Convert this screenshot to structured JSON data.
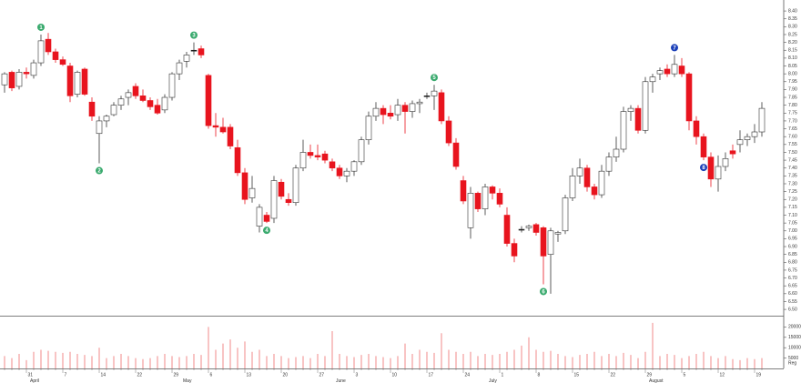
{
  "chart_data": {
    "type": "candlestick",
    "categories": [
      null,
      null,
      null,
      "31",
      null,
      null,
      null,
      null,
      "7",
      null,
      null,
      null,
      null,
      "14",
      null,
      null,
      null,
      null,
      "22",
      null,
      null,
      null,
      null,
      "29",
      null,
      null,
      null,
      null,
      "6",
      null,
      null,
      null,
      null,
      "13",
      null,
      null,
      null,
      null,
      "20",
      null,
      null,
      null,
      null,
      "27",
      null,
      null,
      null,
      null,
      "3",
      null,
      null,
      null,
      null,
      "10",
      null,
      null,
      null,
      null,
      "17",
      null,
      null,
      null,
      null,
      "24",
      null,
      null,
      null,
      null,
      "1",
      null,
      null,
      null,
      null,
      "8",
      null,
      null,
      null,
      null,
      "15",
      null,
      null,
      null,
      null,
      "22",
      null,
      null,
      null,
      null,
      "29",
      null,
      null,
      null,
      null,
      "5",
      null,
      null,
      null,
      null,
      "12",
      null,
      null,
      null,
      null,
      "19",
      null
    ],
    "months": [
      null,
      null,
      null,
      null,
      "April",
      null,
      null,
      null,
      null,
      null,
      null,
      null,
      null,
      null,
      null,
      null,
      null,
      null,
      null,
      null,
      null,
      null,
      null,
      null,
      null,
      "May",
      null,
      null,
      null,
      null,
      null,
      null,
      null,
      null,
      null,
      null,
      null,
      null,
      null,
      null,
      null,
      null,
      null,
      null,
      null,
      null,
      "June",
      null,
      null,
      null,
      null,
      null,
      null,
      null,
      null,
      null,
      null,
      null,
      null,
      null,
      null,
      null,
      null,
      null,
      null,
      null,
      null,
      "July",
      null,
      null,
      null,
      null,
      null,
      null,
      null,
      null,
      null,
      null,
      null,
      null,
      null,
      null,
      null,
      null,
      null,
      null,
      null,
      null,
      null,
      "August",
      null,
      null,
      null,
      null,
      null,
      null,
      null,
      null,
      null,
      null,
      null,
      null,
      null,
      null
    ],
    "open": [
      7.93,
      8.01,
      7.92,
      8.01,
      7.99,
      8.07,
      8.22,
      8.14,
      8.09,
      8.05,
      7.87,
      8.03,
      7.82,
      7.62,
      7.7,
      7.74,
      7.8,
      7.85,
      7.92,
      7.86,
      7.83,
      7.8,
      7.77,
      7.85,
      8.0,
      8.08,
      8.15,
      8.16,
      7.99,
      7.67,
      7.66,
      7.66,
      7.53,
      7.37,
      7.21,
      7.03,
      7.1,
      7.08,
      7.31,
      7.2,
      7.18,
      7.4,
      7.5,
      7.48,
      7.49,
      7.44,
      7.4,
      7.35,
      7.38,
      7.44,
      7.58,
      7.73,
      7.78,
      7.75,
      7.74,
      7.8,
      7.76,
      7.81,
      7.86,
      7.86,
      7.88,
      7.7,
      7.56,
      7.32,
      7.02,
      7.24,
      7.14,
      7.28,
      7.24,
      7.1,
      6.92,
      7.01,
      7.02,
      7.04,
      7.02,
      6.85,
      6.98,
      7.0,
      7.21,
      7.35,
      7.4,
      7.28,
      7.23,
      7.38,
      7.47,
      7.52,
      7.76,
      7.78,
      7.64,
      7.95,
      8.0,
      8.03,
      8.0,
      8.05,
      8.0,
      7.7,
      7.6,
      7.47,
      7.33,
      7.41,
      7.51,
      7.55,
      7.58,
      7.6,
      7.63
    ],
    "high": [
      8.01,
      8.02,
      8.03,
      8.04,
      8.09,
      8.25,
      8.26,
      8.16,
      8.11,
      8.07,
      8.02,
      8.04,
      7.85,
      7.73,
      7.74,
      7.82,
      7.86,
      7.9,
      7.94,
      7.9,
      7.85,
      7.84,
      7.87,
      8.01,
      8.09,
      8.14,
      8.2,
      8.18,
      8.0,
      7.75,
      7.72,
      7.68,
      7.58,
      7.4,
      7.35,
      7.17,
      7.12,
      7.35,
      7.33,
      7.24,
      7.42,
      7.58,
      7.55,
      7.55,
      7.51,
      7.46,
      7.42,
      7.4,
      7.45,
      7.6,
      7.76,
      7.82,
      7.8,
      7.8,
      7.84,
      7.82,
      7.83,
      7.84,
      7.88,
      7.93,
      7.9,
      7.73,
      7.59,
      7.35,
      7.28,
      7.25,
      7.3,
      7.29,
      7.27,
      7.15,
      6.95,
      7.03,
      7.04,
      7.05,
      7.03,
      7.02,
      7.0,
      7.23,
      7.4,
      7.46,
      7.42,
      7.3,
      7.42,
      7.5,
      7.6,
      7.79,
      7.8,
      7.8,
      7.98,
      8.0,
      8.04,
      8.06,
      8.12,
      8.1,
      8.01,
      7.73,
      7.62,
      7.5,
      7.48,
      7.5,
      7.55,
      7.64,
      7.62,
      7.68,
      7.82
    ],
    "low": [
      7.88,
      7.89,
      7.9,
      7.97,
      7.97,
      8.05,
      8.12,
      8.07,
      8.05,
      7.82,
      7.85,
      7.86,
      7.7,
      7.43,
      7.66,
      7.73,
      7.77,
      7.8,
      7.84,
      7.82,
      7.77,
      7.74,
      7.75,
      7.83,
      7.96,
      8.04,
      8.12,
      8.1,
      7.65,
      7.6,
      7.62,
      7.52,
      7.35,
      7.17,
      7.18,
      6.99,
      7.05,
      7.05,
      7.2,
      7.16,
      7.16,
      7.38,
      7.46,
      7.45,
      7.43,
      7.38,
      7.33,
      7.31,
      7.35,
      7.42,
      7.55,
      7.7,
      7.68,
      7.71,
      7.7,
      7.62,
      7.72,
      7.75,
      7.84,
      7.77,
      7.68,
      7.54,
      7.39,
      7.17,
      6.95,
      7.12,
      7.1,
      7.2,
      7.15,
      6.9,
      6.8,
      6.99,
      7.0,
      6.97,
      6.66,
      6.6,
      6.93,
      6.98,
      7.19,
      7.3,
      7.25,
      7.2,
      7.21,
      7.35,
      7.44,
      7.5,
      7.7,
      7.62,
      7.62,
      7.88,
      7.96,
      7.98,
      7.98,
      7.98,
      7.64,
      7.55,
      7.45,
      7.28,
      7.25,
      7.38,
      7.46,
      7.5,
      7.54,
      7.56,
      7.6
    ],
    "close": [
      8.0,
      7.91,
      8.01,
      8.0,
      8.07,
      8.21,
      8.14,
      8.09,
      8.06,
      7.86,
      8.01,
      7.87,
      7.73,
      7.7,
      7.73,
      7.8,
      7.84,
      7.88,
      7.86,
      7.83,
      7.79,
      7.75,
      7.85,
      8.0,
      8.07,
      8.12,
      8.15,
      8.12,
      7.67,
      7.66,
      7.63,
      7.54,
      7.37,
      7.2,
      7.27,
      7.15,
      7.06,
      7.32,
      7.22,
      7.18,
      7.4,
      7.5,
      7.48,
      7.47,
      7.45,
      7.4,
      7.35,
      7.38,
      7.44,
      7.58,
      7.73,
      7.78,
      7.74,
      7.73,
      7.8,
      7.76,
      7.81,
      7.82,
      7.86,
      7.89,
      7.7,
      7.56,
      7.41,
      7.19,
      7.24,
      7.14,
      7.28,
      7.24,
      7.17,
      6.92,
      6.84,
      7.01,
      7.03,
      6.99,
      6.84,
      7.0,
      6.99,
      7.21,
      7.35,
      7.4,
      7.28,
      7.23,
      7.38,
      7.47,
      7.52,
      7.76,
      7.78,
      7.64,
      7.95,
      7.98,
      8.02,
      8.0,
      8.06,
      8.0,
      7.7,
      7.6,
      7.47,
      7.33,
      7.41,
      7.46,
      7.49,
      7.58,
      7.6,
      7.63,
      7.78
    ],
    "volume": [
      6000,
      5000,
      7000,
      4000,
      8000,
      9000,
      8500,
      8000,
      7500,
      8000,
      7000,
      6500,
      6000,
      10000,
      5000,
      6000,
      7000,
      6000,
      5000,
      4500,
      5000,
      6000,
      7000,
      6000,
      5500,
      6000,
      7000,
      6500,
      20000,
      9000,
      12000,
      14000,
      10000,
      13000,
      8000,
      9000,
      6000,
      7000,
      6000,
      5000,
      5500,
      6000,
      5000,
      7000,
      6000,
      18000,
      7000,
      6000,
      5500,
      6500,
      7000,
      6000,
      5500,
      5000,
      6000,
      12000,
      7000,
      9000,
      8000,
      7500,
      17000,
      9000,
      8000,
      7000,
      8000,
      6000,
      7000,
      6500,
      7000,
      8000,
      9000,
      11000,
      15000,
      9000,
      8000,
      8500,
      7000,
      6000,
      5500,
      6500,
      7000,
      8000,
      6000,
      7000,
      6000,
      7500,
      6500,
      5000,
      8000,
      22000,
      6000,
      7000,
      6500,
      5000,
      6000,
      7000,
      8000,
      6000,
      5000,
      6000,
      4500,
      4000,
      5000,
      4500,
      5000
    ],
    "ylim": [
      6.46,
      8.47
    ],
    "yticks": [
      {
        "value": 6.5,
        "label": "6.50"
      },
      {
        "value": 6.55,
        "label": "6.55"
      },
      {
        "value": 6.6,
        "label": "6.60"
      },
      {
        "value": 6.65,
        "label": "6.65"
      },
      {
        "value": 6.7,
        "label": "6.70"
      },
      {
        "value": 6.75,
        "label": "6.75"
      },
      {
        "value": 6.8,
        "label": "6.80"
      },
      {
        "value": 6.85,
        "label": "6.85"
      },
      {
        "value": 6.9,
        "label": "6.90"
      },
      {
        "value": 6.95,
        "label": "6.95"
      },
      {
        "value": 7.0,
        "label": "7.00"
      },
      {
        "value": 7.05,
        "label": "7.05"
      },
      {
        "value": 7.1,
        "label": "7.10"
      },
      {
        "value": 7.15,
        "label": "7.15"
      },
      {
        "value": 7.2,
        "label": "7.20"
      },
      {
        "value": 7.25,
        "label": "7.25"
      },
      {
        "value": 7.3,
        "label": "7.30"
      },
      {
        "value": 7.35,
        "label": "7.35"
      },
      {
        "value": 7.4,
        "label": "7.40"
      },
      {
        "value": 7.45,
        "label": "7.45"
      },
      {
        "value": 7.5,
        "label": "7.50"
      },
      {
        "value": 7.55,
        "label": "7.55"
      },
      {
        "value": 7.6,
        "label": "7.60"
      },
      {
        "value": 7.65,
        "label": "7.65"
      },
      {
        "value": 7.7,
        "label": "7.70"
      },
      {
        "value": 7.75,
        "label": "7.75"
      },
      {
        "value": 7.8,
        "label": "7.80"
      },
      {
        "value": 7.85,
        "label": "7.85"
      },
      {
        "value": 7.9,
        "label": "7.90"
      },
      {
        "value": 7.95,
        "label": "7.95"
      },
      {
        "value": 8.0,
        "label": "8.00"
      },
      {
        "value": 8.05,
        "label": "8.05"
      },
      {
        "value": 8.1,
        "label": "8.10"
      },
      {
        "value": 8.15,
        "label": "8.15"
      },
      {
        "value": 8.2,
        "label": "8.20"
      },
      {
        "value": 8.25,
        "label": "8.25"
      },
      {
        "value": 8.3,
        "label": "8.30"
      },
      {
        "value": 8.35,
        "label": "8.35"
      },
      {
        "value": 8.4,
        "label": "8.40"
      }
    ],
    "volume_lim": [
      0,
      25000
    ],
    "volume_ticks": [
      5000,
      10000,
      15000,
      20000
    ],
    "up_color": "#ffffff",
    "down_color": "#e8141e",
    "volume_color": "#f08a8a",
    "corner_label": "Reg",
    "annotations": [
      {
        "label": "1",
        "index": 5,
        "position": "above",
        "color": "#3aaa6e"
      },
      {
        "label": "2",
        "index": 13,
        "position": "below",
        "color": "#3aaa6e"
      },
      {
        "label": "3",
        "index": 26,
        "position": "above",
        "color": "#3aaa6e"
      },
      {
        "label": "4",
        "index": 36,
        "position": "below",
        "color": "#3aaa6e"
      },
      {
        "label": "5",
        "index": 59,
        "position": "above",
        "color": "#3aaa6e"
      },
      {
        "label": "6",
        "index": 74,
        "position": "below",
        "color": "#3aaa6e"
      },
      {
        "label": "7",
        "index": 92,
        "position": "above",
        "color": "#1a3fb8"
      },
      {
        "label": "8",
        "index": 96,
        "position": "below",
        "color": "#1a3fb8"
      }
    ]
  }
}
